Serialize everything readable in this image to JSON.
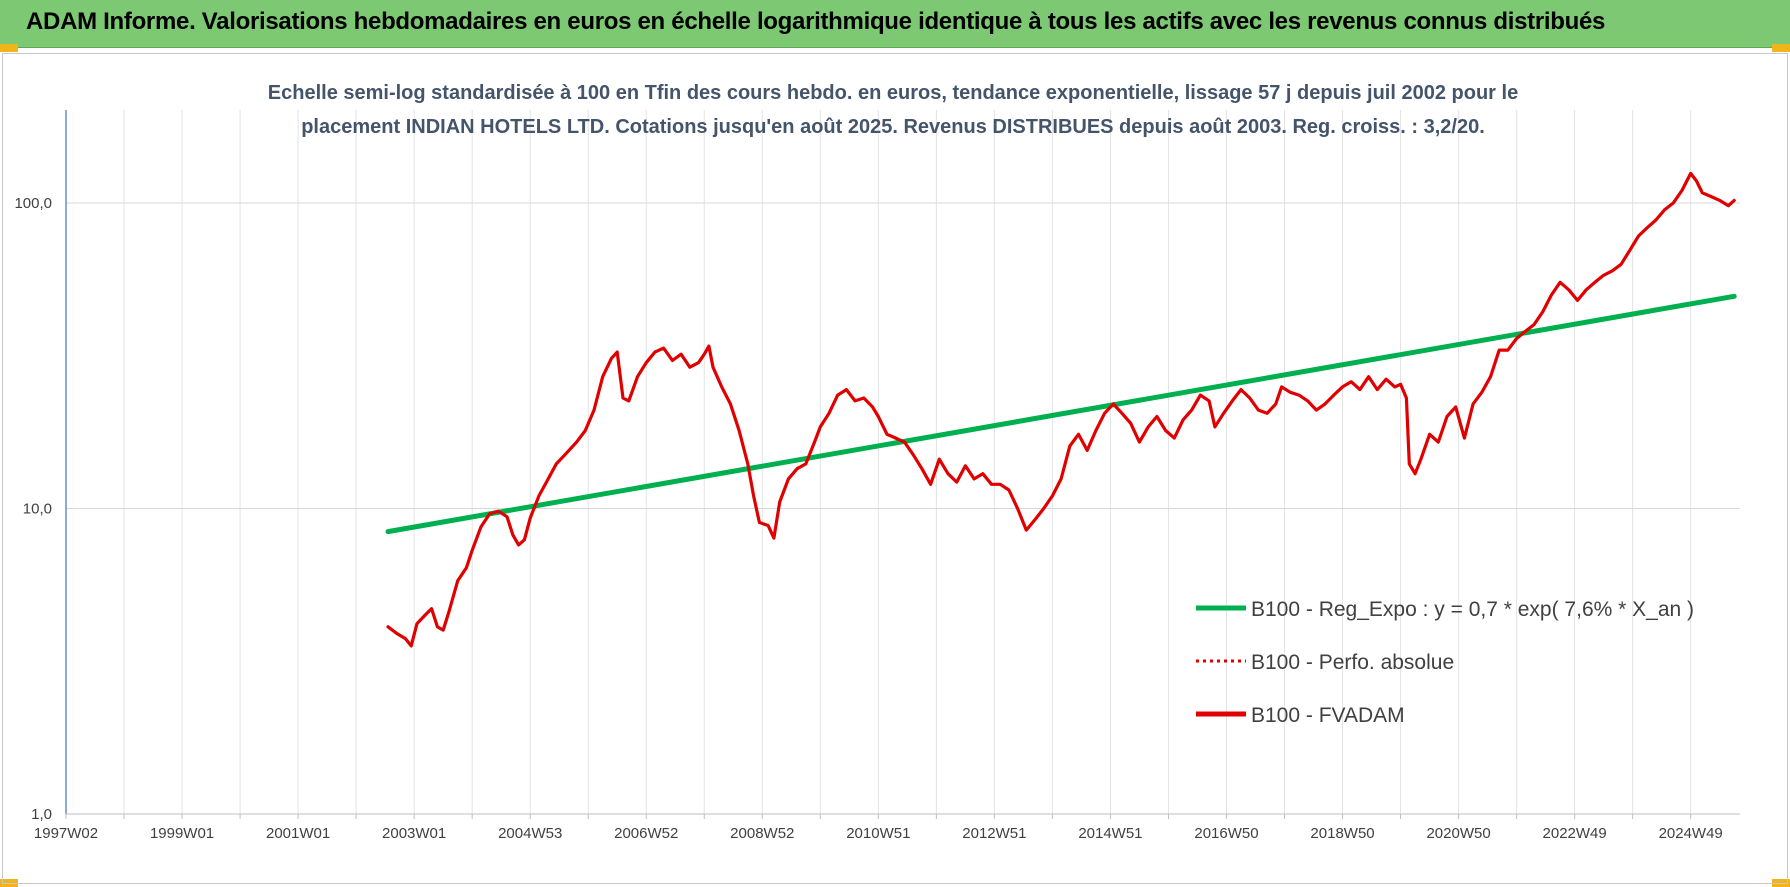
{
  "header": {
    "title": "ADAM Informe. Valorisations hebdomadaires en euros en échelle logarithmique identique à tous les actifs avec les revenus connus distribués",
    "background": "#7dc872",
    "corner_color": "#f1b51c"
  },
  "chart_data": {
    "type": "line",
    "title_lines": [
      "Echelle semi-log standardisée à 100 en Tfin des cours hebdo. en euros, tendance exponentielle, lissage 57 j depuis juil 2002 pour le",
      "placement INDIAN HOTELS LTD. Cotations jusqu'en août 2025. Revenus DISTRIBUES depuis août 2003. Reg. croiss. : 3,2/20."
    ],
    "y_scale": "log",
    "ylim": [
      1,
      180
    ],
    "y_ticks": [
      {
        "value": 1,
        "label": "1,0"
      },
      {
        "value": 10,
        "label": "10,0"
      },
      {
        "value": 100,
        "label": "100,0"
      }
    ],
    "xlim": [
      1997.0,
      2025.85
    ],
    "x_ticks": [
      {
        "value": 1997.0,
        "label": "1997W02"
      },
      {
        "value": 1999.0,
        "label": "1999W01"
      },
      {
        "value": 2001.0,
        "label": "2001W01"
      },
      {
        "value": 2003.0,
        "label": "2003W01"
      },
      {
        "value": 2005.0,
        "label": "2004W53"
      },
      {
        "value": 2007.0,
        "label": "2006W52"
      },
      {
        "value": 2009.0,
        "label": "2008W52"
      },
      {
        "value": 2011.0,
        "label": "2010W51"
      },
      {
        "value": 2013.0,
        "label": "2012W51"
      },
      {
        "value": 2015.0,
        "label": "2014W51"
      },
      {
        "value": 2017.0,
        "label": "2016W50"
      },
      {
        "value": 2019.0,
        "label": "2018W50"
      },
      {
        "value": 2021.0,
        "label": "2020W50"
      },
      {
        "value": 2023.0,
        "label": "2022W49"
      },
      {
        "value": 2025.0,
        "label": "2024W49"
      }
    ],
    "grid": true,
    "legend_position": "bottom-right",
    "series": [
      {
        "name": "B100 - Reg_Expo : y = 0,7 * exp( 7,6% *  X_an )",
        "color": "#00b050",
        "style": "solid",
        "points": [
          [
            2002.55,
            8.4
          ],
          [
            2025.75,
            49.5
          ]
        ]
      },
      {
        "name": "B100 - Perfo. absolue",
        "color": "#e00000",
        "style": "dotted",
        "points": []
      },
      {
        "name": "B100 - FVADAM",
        "color": "#e00000",
        "style": "solid",
        "points": [
          [
            2002.55,
            4.1
          ],
          [
            2002.7,
            3.9
          ],
          [
            2002.85,
            3.75
          ],
          [
            2002.95,
            3.55
          ],
          [
            2003.05,
            4.2
          ],
          [
            2003.2,
            4.5
          ],
          [
            2003.3,
            4.7
          ],
          [
            2003.4,
            4.1
          ],
          [
            2003.5,
            4.0
          ],
          [
            2003.6,
            4.6
          ],
          [
            2003.75,
            5.8
          ],
          [
            2003.9,
            6.4
          ],
          [
            2004.0,
            7.3
          ],
          [
            2004.15,
            8.7
          ],
          [
            2004.3,
            9.6
          ],
          [
            2004.45,
            9.8
          ],
          [
            2004.6,
            9.4
          ],
          [
            2004.7,
            8.2
          ],
          [
            2004.8,
            7.6
          ],
          [
            2004.9,
            7.9
          ],
          [
            2005.0,
            9.3
          ],
          [
            2005.15,
            11.0
          ],
          [
            2005.3,
            12.4
          ],
          [
            2005.45,
            14.0
          ],
          [
            2005.6,
            15.0
          ],
          [
            2005.8,
            16.5
          ],
          [
            2005.95,
            18.0
          ],
          [
            2006.1,
            21.0
          ],
          [
            2006.25,
            27.0
          ],
          [
            2006.4,
            31.0
          ],
          [
            2006.5,
            32.5
          ],
          [
            2006.6,
            23.0
          ],
          [
            2006.7,
            22.5
          ],
          [
            2006.85,
            27.0
          ],
          [
            2007.0,
            30.0
          ],
          [
            2007.15,
            32.5
          ],
          [
            2007.3,
            33.5
          ],
          [
            2007.45,
            30.5
          ],
          [
            2007.6,
            32.0
          ],
          [
            2007.75,
            29.0
          ],
          [
            2007.9,
            30.0
          ],
          [
            2008.0,
            32.0
          ],
          [
            2008.08,
            34.0
          ],
          [
            2008.15,
            29.0
          ],
          [
            2008.3,
            25.0
          ],
          [
            2008.45,
            22.0
          ],
          [
            2008.6,
            18.0
          ],
          [
            2008.75,
            14.0
          ],
          [
            2008.85,
            11.0
          ],
          [
            2008.95,
            9.0
          ],
          [
            2009.1,
            8.8
          ],
          [
            2009.2,
            8.0
          ],
          [
            2009.3,
            10.5
          ],
          [
            2009.45,
            12.5
          ],
          [
            2009.6,
            13.5
          ],
          [
            2009.75,
            14.0
          ],
          [
            2009.9,
            16.5
          ],
          [
            2010.0,
            18.5
          ],
          [
            2010.15,
            20.5
          ],
          [
            2010.3,
            23.5
          ],
          [
            2010.45,
            24.5
          ],
          [
            2010.6,
            22.5
          ],
          [
            2010.75,
            23.0
          ],
          [
            2010.9,
            21.5
          ],
          [
            2011.0,
            20.0
          ],
          [
            2011.15,
            17.5
          ],
          [
            2011.3,
            17.0
          ],
          [
            2011.45,
            16.5
          ],
          [
            2011.6,
            15.0
          ],
          [
            2011.75,
            13.5
          ],
          [
            2011.9,
            12.0
          ],
          [
            2012.05,
            14.5
          ],
          [
            2012.2,
            13.0
          ],
          [
            2012.35,
            12.2
          ],
          [
            2012.5,
            13.8
          ],
          [
            2012.65,
            12.5
          ],
          [
            2012.8,
            13.0
          ],
          [
            2012.95,
            12.0
          ],
          [
            2013.1,
            12.0
          ],
          [
            2013.25,
            11.5
          ],
          [
            2013.4,
            10.0
          ],
          [
            2013.55,
            8.5
          ],
          [
            2013.7,
            9.2
          ],
          [
            2013.85,
            10.0
          ],
          [
            2014.0,
            11.0
          ],
          [
            2014.15,
            12.5
          ],
          [
            2014.3,
            16.0
          ],
          [
            2014.45,
            17.5
          ],
          [
            2014.6,
            15.5
          ],
          [
            2014.75,
            18.0
          ],
          [
            2014.9,
            20.5
          ],
          [
            2015.05,
            22.0
          ],
          [
            2015.2,
            20.5
          ],
          [
            2015.35,
            19.0
          ],
          [
            2015.5,
            16.5
          ],
          [
            2015.65,
            18.5
          ],
          [
            2015.8,
            20.0
          ],
          [
            2015.95,
            18.0
          ],
          [
            2016.1,
            17.0
          ],
          [
            2016.25,
            19.5
          ],
          [
            2016.4,
            21.0
          ],
          [
            2016.55,
            23.5
          ],
          [
            2016.7,
            22.5
          ],
          [
            2016.8,
            18.5
          ],
          [
            2016.95,
            20.5
          ],
          [
            2017.1,
            22.5
          ],
          [
            2017.25,
            24.5
          ],
          [
            2017.4,
            23.0
          ],
          [
            2017.55,
            21.0
          ],
          [
            2017.7,
            20.5
          ],
          [
            2017.85,
            22.0
          ],
          [
            2017.95,
            25.0
          ],
          [
            2018.1,
            24.0
          ],
          [
            2018.25,
            23.5
          ],
          [
            2018.4,
            22.5
          ],
          [
            2018.55,
            21.0
          ],
          [
            2018.7,
            22.0
          ],
          [
            2018.85,
            23.5
          ],
          [
            2019.0,
            25.0
          ],
          [
            2019.15,
            26.0
          ],
          [
            2019.3,
            24.5
          ],
          [
            2019.45,
            27.0
          ],
          [
            2019.6,
            24.5
          ],
          [
            2019.75,
            26.5
          ],
          [
            2019.9,
            25.0
          ],
          [
            2020.0,
            25.5
          ],
          [
            2020.1,
            23.0
          ],
          [
            2020.15,
            14.0
          ],
          [
            2020.25,
            13.0
          ],
          [
            2020.35,
            14.5
          ],
          [
            2020.5,
            17.5
          ],
          [
            2020.65,
            16.5
          ],
          [
            2020.8,
            20.0
          ],
          [
            2020.95,
            21.5
          ],
          [
            2021.1,
            17.0
          ],
          [
            2021.25,
            22.0
          ],
          [
            2021.4,
            24.0
          ],
          [
            2021.55,
            27.0
          ],
          [
            2021.7,
            33.0
          ],
          [
            2021.85,
            33.0
          ],
          [
            2022.0,
            36.0
          ],
          [
            2022.15,
            38.0
          ],
          [
            2022.3,
            40.0
          ],
          [
            2022.45,
            44.0
          ],
          [
            2022.6,
            50.0
          ],
          [
            2022.75,
            55.0
          ],
          [
            2022.9,
            52.0
          ],
          [
            2023.05,
            48.0
          ],
          [
            2023.2,
            52.0
          ],
          [
            2023.35,
            55.0
          ],
          [
            2023.5,
            58.0
          ],
          [
            2023.65,
            60.0
          ],
          [
            2023.8,
            63.0
          ],
          [
            2023.95,
            70.0
          ],
          [
            2024.1,
            78.0
          ],
          [
            2024.25,
            83.0
          ],
          [
            2024.4,
            88.0
          ],
          [
            2024.55,
            95.0
          ],
          [
            2024.7,
            100.0
          ],
          [
            2024.85,
            110.0
          ],
          [
            2025.0,
            125.0
          ],
          [
            2025.1,
            118.0
          ],
          [
            2025.2,
            108.0
          ],
          [
            2025.35,
            105.0
          ],
          [
            2025.5,
            102.0
          ],
          [
            2025.65,
            98.0
          ],
          [
            2025.75,
            102.0
          ]
        ]
      }
    ]
  }
}
